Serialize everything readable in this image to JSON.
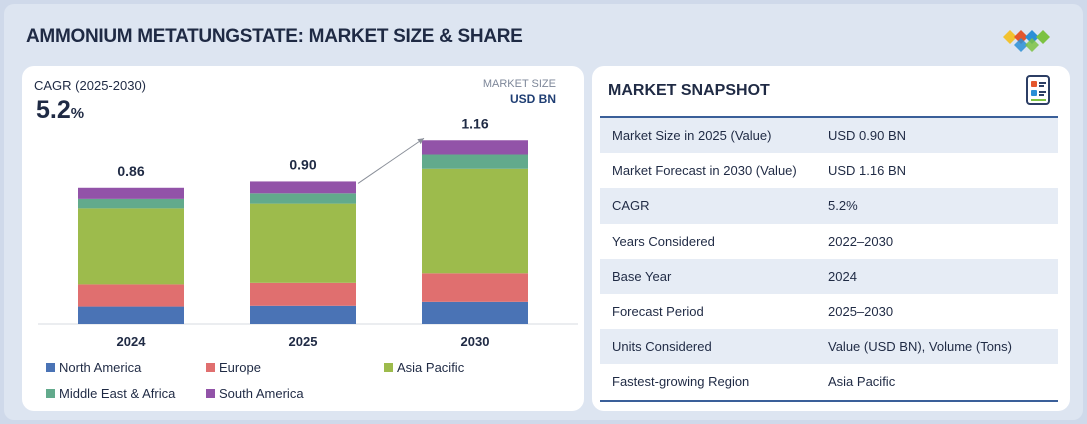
{
  "header": {
    "title": "AMMONIUM METATUNGSTATE: MARKET SIZE & SHARE"
  },
  "chart_panel": {
    "cagr_label": "CAGR (2025-2030)",
    "cagr_value": "5.2",
    "cagr_unit": "%",
    "market_size_label": "MARKET SIZE",
    "market_size_unit": "USD BN"
  },
  "chart_data": {
    "type": "bar",
    "stacked": true,
    "title": "AMMONIUM METATUNGSTATE: MARKET SIZE & SHARE",
    "ylabel": "USD BN",
    "categories": [
      "2024",
      "2025",
      "2030"
    ],
    "totals": [
      0.86,
      0.9,
      1.16
    ],
    "total_labels": [
      "0.86",
      "0.90",
      "1.16"
    ],
    "ylim": [
      0,
      1.25
    ],
    "series": [
      {
        "name": "North America",
        "color": "#4a73b5",
        "values": [
          0.11,
          0.115,
          0.14
        ]
      },
      {
        "name": "Europe",
        "color": "#e06f6f",
        "values": [
          0.14,
          0.145,
          0.18
        ]
      },
      {
        "name": "Asia Pacific",
        "color": "#9dbb4c",
        "values": [
          0.48,
          0.5,
          0.66
        ]
      },
      {
        "name": "Middle East & Africa",
        "color": "#62aa8c",
        "values": [
          0.06,
          0.065,
          0.09
        ]
      },
      {
        "name": "South America",
        "color": "#9253a8",
        "values": [
          0.07,
          0.075,
          0.09
        ]
      }
    ],
    "annotation": "growth arrow from 2025 to 2030"
  },
  "snapshot": {
    "title": "MARKET SNAPSHOT",
    "rows": [
      {
        "key": "Market Size in 2025 (Value)",
        "value": "USD 0.90 BN"
      },
      {
        "key": "Market Forecast in 2030 (Value)",
        "value": "USD 1.16 BN"
      },
      {
        "key": "CAGR",
        "value": "5.2%"
      },
      {
        "key": "Years Considered",
        "value": "2022–2030"
      },
      {
        "key": "Base Year",
        "value": "2024"
      },
      {
        "key": "Forecast Period",
        "value": "2025–2030"
      },
      {
        "key": "Units Considered",
        "value": "Value (USD BN), Volume (Tons)"
      },
      {
        "key": "Fastest-growing Region",
        "value": "Asia Pacific"
      }
    ]
  }
}
